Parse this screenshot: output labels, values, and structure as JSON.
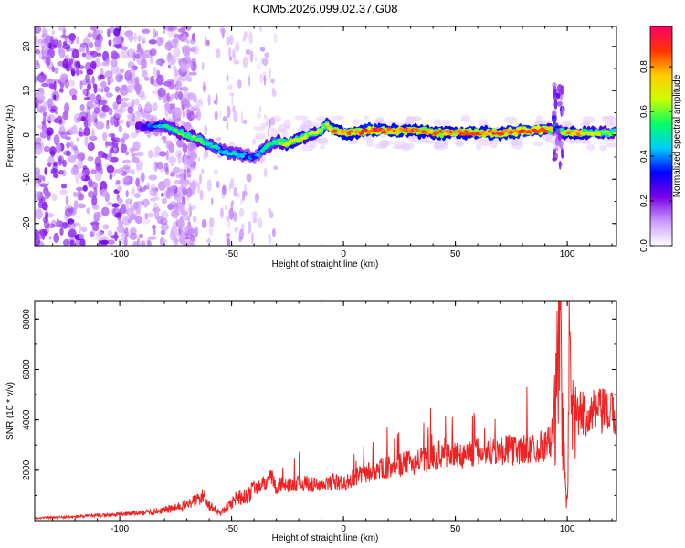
{
  "title": "KOM5.2026.099.02.37.G08",
  "chart_data": [
    {
      "type": "heatmap",
      "name": "spectrogram",
      "xlabel": "Height of straight line (km)",
      "ylabel": "Frequency (Hz)",
      "xlim": [
        -138,
        122
      ],
      "ylim": [
        -25,
        24.5
      ],
      "xticks": [
        -100,
        -50,
        0,
        50,
        100
      ],
      "yticks": [
        -20,
        -10,
        0,
        10,
        20
      ],
      "colorbar": {
        "label": "Normalized spectral amplitude",
        "range": [
          0.0,
          0.98
        ],
        "ticks": [
          0.0,
          0.2,
          0.4,
          0.6,
          0.8
        ],
        "tick_labels": [
          "0.0",
          "0.2",
          "0.4",
          "0.6",
          "0.8"
        ],
        "colors": [
          "#ffffff",
          "#cc99ff",
          "#7a00e6",
          "#0000ff",
          "#00ccff",
          "#00ff66",
          "#ccff00",
          "#ffcc00",
          "#ff3300",
          "#ff0066"
        ]
      },
      "ridge": {
        "x": [
          -90,
          -80,
          -70,
          -60,
          -55,
          -50,
          -45,
          -40,
          -35,
          -30,
          -25,
          -20,
          -15,
          -10,
          -8,
          -5,
          0,
          5,
          10,
          20,
          30,
          40,
          50,
          60,
          70,
          80,
          90,
          95,
          96,
          100,
          110,
          120
        ],
        "freq": [
          2,
          2,
          0,
          -2,
          -3.5,
          -4,
          -4.5,
          -5,
          -3,
          -1.5,
          -2,
          -1,
          0,
          1,
          2.5,
          1,
          0.5,
          0.5,
          1,
          1,
          1,
          0.5,
          0.5,
          0.5,
          0.5,
          1,
          1,
          1.5,
          1,
          0.5,
          0.5,
          0.5
        ],
        "amplitude": [
          0.3,
          0.5,
          0.6,
          0.55,
          0.45,
          0.5,
          0.45,
          0.35,
          0.5,
          0.55,
          0.75,
          0.7,
          0.65,
          0.7,
          0.6,
          0.8,
          0.85,
          0.8,
          0.9,
          0.85,
          0.85,
          0.8,
          0.85,
          0.85,
          0.85,
          0.9,
          0.9,
          0.5,
          0.4,
          0.85,
          0.7,
          0.6
        ]
      }
    },
    {
      "type": "line",
      "name": "snr",
      "xlabel": "Height of straight line (km)",
      "ylabel": "SNR (10 * v/v)",
      "xlim": [
        -138,
        122
      ],
      "ylim": [
        0,
        8700
      ],
      "xticks": [
        -100,
        -50,
        0,
        50,
        100
      ],
      "yticks": [
        2000,
        4000,
        6000,
        8000
      ],
      "color": "#ee2222",
      "x": [
        -138,
        -120,
        -100,
        -85,
        -75,
        -70,
        -65,
        -62,
        -60,
        -55,
        -50,
        -47,
        -45,
        -40,
        -35,
        -32,
        -30,
        -27,
        -25,
        -20,
        -15,
        -10,
        -5,
        0,
        5,
        10,
        20,
        30,
        40,
        45,
        50,
        60,
        70,
        80,
        85,
        90,
        93,
        95,
        96,
        97,
        98,
        99,
        100,
        101,
        102,
        103,
        105,
        110,
        115,
        122
      ],
      "y": [
        100,
        150,
        250,
        350,
        500,
        650,
        850,
        1000,
        600,
        300,
        700,
        1000,
        900,
        1200,
        1500,
        1700,
        1300,
        1500,
        1400,
        1500,
        1450,
        1350,
        1550,
        1450,
        1700,
        1900,
        2100,
        2300,
        2500,
        2700,
        2600,
        2700,
        2800,
        2800,
        2900,
        3000,
        3200,
        4500,
        7000,
        8600,
        3500,
        1500,
        600,
        6500,
        3500,
        4000,
        4200,
        4250,
        4300,
        4200
      ]
    }
  ]
}
